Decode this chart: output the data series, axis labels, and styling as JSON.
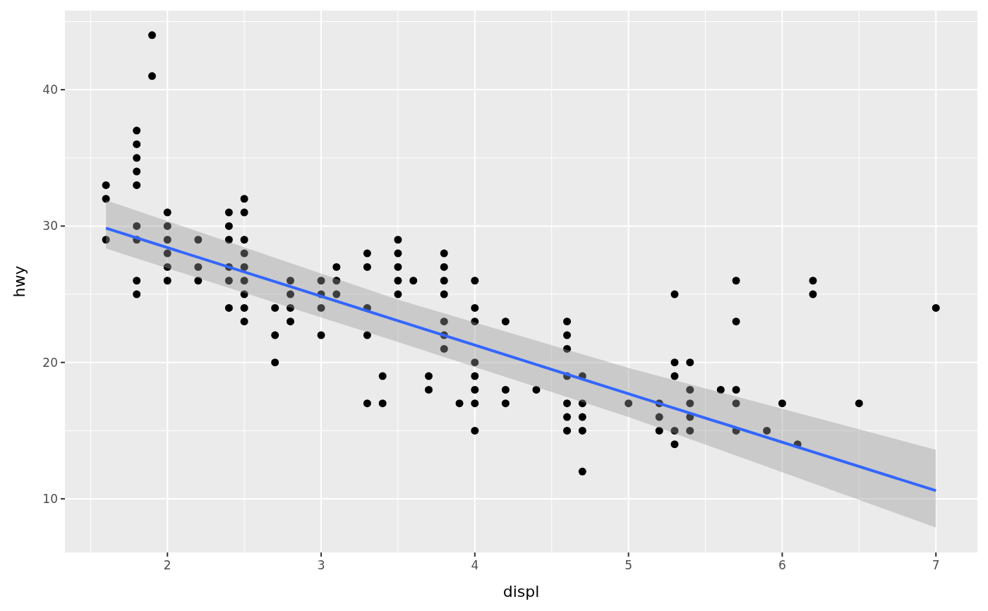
{
  "chart_data": {
    "type": "scatter",
    "xlabel": "displ",
    "ylabel": "hwy",
    "xlim": [
      1.333,
      7.27
    ],
    "ylim": [
      6.07,
      45.8
    ],
    "xticks": [
      {
        "value": 1.5,
        "label": null
      },
      2,
      {
        "value": 2.5,
        "label": null
      },
      3,
      {
        "value": 3.5,
        "label": null
      },
      4,
      {
        "value": 4.5,
        "label": null
      },
      5,
      {
        "value": 5.5,
        "label": null
      },
      6,
      {
        "value": 6.5,
        "label": null
      },
      7
    ],
    "yticks": [
      10,
      {
        "value": 15,
        "label": null
      },
      20,
      {
        "value": 25,
        "label": null
      },
      30,
      {
        "value": 35,
        "label": null
      },
      40,
      {
        "value": 45,
        "label": null
      }
    ],
    "grid": true,
    "marker": "circle",
    "series": [
      {
        "color": "#000000",
        "x": [
          1.6,
          1.6,
          1.6,
          1.8,
          1.8,
          1.8,
          1.8,
          1.8,
          1.8,
          1.8,
          1.8,
          1.8,
          1.9,
          1.9,
          2,
          2,
          2,
          2,
          2,
          2,
          2.2,
          2.2,
          2.2,
          2.4,
          2.4,
          2.4,
          2.4,
          2.4,
          2.4,
          2.5,
          2.5,
          2.5,
          2.5,
          2.5,
          2.5,
          2.5,
          2.5,
          2.5,
          2.7,
          2.7,
          2.7,
          2.8,
          2.8,
          2.8,
          2.8,
          3,
          3,
          3,
          3,
          3.1,
          3.1,
          3.1,
          3.3,
          3.3,
          3.3,
          3.3,
          3.3,
          3.4,
          3.4,
          3.5,
          3.5,
          3.5,
          3.5,
          3.5,
          3.6,
          3.7,
          3.7,
          3.8,
          3.8,
          3.8,
          3.8,
          3.8,
          3.8,
          3.8,
          3.9,
          4,
          4,
          4,
          4,
          4,
          4,
          4,
          4,
          4.2,
          4.2,
          4.2,
          4.4,
          4.6,
          4.6,
          4.6,
          4.6,
          4.6,
          4.6,
          4.6,
          4.7,
          4.7,
          4.7,
          4.7,
          4.7,
          5,
          5.2,
          5.2,
          5.2,
          5.3,
          5.3,
          5.3,
          5.3,
          5.3,
          5.4,
          5.4,
          5.4,
          5.4,
          5.4,
          5.6,
          5.7,
          5.7,
          5.7,
          5.7,
          5.7,
          5.9,
          6,
          6.1,
          6.2,
          6.2,
          6.5,
          7
        ],
        "values": [
          33,
          32,
          29,
          37,
          36,
          35,
          34,
          33,
          30,
          29,
          26,
          25,
          44,
          41,
          31,
          30,
          29,
          28,
          27,
          26,
          29,
          27,
          26,
          31,
          30,
          29,
          27,
          26,
          24,
          32,
          31,
          29,
          28,
          27,
          26,
          25,
          24,
          23,
          24,
          22,
          20,
          26,
          25,
          24,
          23,
          26,
          25,
          24,
          22,
          27,
          26,
          25,
          28,
          27,
          24,
          22,
          17,
          19,
          17,
          29,
          28,
          27,
          26,
          25,
          26,
          19,
          18,
          28,
          27,
          26,
          25,
          23,
          22,
          21,
          17,
          26,
          24,
          23,
          20,
          19,
          18,
          17,
          15,
          23,
          18,
          17,
          18,
          23,
          22,
          21,
          19,
          17,
          16,
          15,
          19,
          17,
          16,
          15,
          12,
          17,
          17,
          16,
          15,
          25,
          20,
          19,
          15,
          14,
          20,
          18,
          17,
          16,
          15,
          18,
          26,
          23,
          18,
          17,
          15,
          15,
          17,
          14,
          26,
          25,
          17,
          24
        ]
      },
      {
        "type": "line",
        "marker": "none",
        "color": "#3366ff",
        "x": [
          1.6,
          3.5,
          5,
          7
        ],
        "values": [
          29.85,
          23.06,
          17.7,
          10.6
        ],
        "lower": [
          28.35,
          21.5,
          16,
          7.9
        ],
        "upper": [
          31.9,
          24.6,
          19.6,
          13.6
        ]
      }
    ]
  }
}
